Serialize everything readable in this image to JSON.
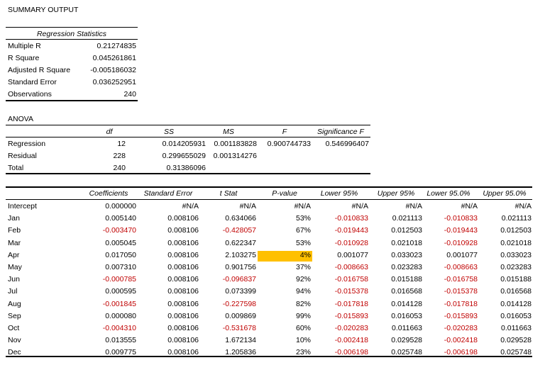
{
  "title": "SUMMARY OUTPUT",
  "regression_stats": {
    "header": "Regression Statistics",
    "rows": [
      {
        "label": "Multiple R",
        "value": "0.21274835"
      },
      {
        "label": "R Square",
        "value": "0.045261861"
      },
      {
        "label": "Adjusted R Square",
        "value": "-0.005186032"
      },
      {
        "label": "Standard Error",
        "value": "0.036252951"
      },
      {
        "label": "Observations",
        "value": "240"
      }
    ]
  },
  "anova": {
    "title": "ANOVA",
    "headers": [
      "df",
      "SS",
      "MS",
      "F",
      "Significance F"
    ],
    "rows": [
      {
        "label": "Regression",
        "df": "12",
        "ss": "0.014205931",
        "ms": "0.001183828",
        "f": "0.900744733",
        "sig": "0.546996407"
      },
      {
        "label": "Residual",
        "df": "228",
        "ss": "0.299655029",
        "ms": "0.001314276",
        "f": "",
        "sig": ""
      },
      {
        "label": "Total",
        "df": "240",
        "ss": "0.31386096",
        "ms": "",
        "f": "",
        "sig": ""
      }
    ]
  },
  "coefficients": {
    "headers": [
      "Coefficients",
      "Standard Error",
      "t Stat",
      "P-value",
      "Lower 95%",
      "Upper 95%",
      "Lower 95.0%",
      "Upper 95.0%"
    ],
    "highlight_color": "#ffc000",
    "negative_color": "#c00000",
    "rows": [
      {
        "label": "Intercept",
        "coef": "0.000000",
        "se": "#N/A",
        "t": "#N/A",
        "p": "#N/A",
        "l95": "#N/A",
        "u95": "#N/A",
        "l950": "#N/A",
        "u950": "#N/A"
      },
      {
        "label": "Jan",
        "coef": "0.005140",
        "se": "0.008106",
        "t": "0.634066",
        "p": "53%",
        "l95": "-0.010833",
        "u95": "0.021113",
        "l950": "-0.010833",
        "u950": "0.021113"
      },
      {
        "label": "Feb",
        "coef": "-0.003470",
        "se": "0.008106",
        "t": "-0.428057",
        "p": "67%",
        "l95": "-0.019443",
        "u95": "0.012503",
        "l950": "-0.019443",
        "u950": "0.012503"
      },
      {
        "label": "Mar",
        "coef": "0.005045",
        "se": "0.008106",
        "t": "0.622347",
        "p": "53%",
        "l95": "-0.010928",
        "u95": "0.021018",
        "l950": "-0.010928",
        "u950": "0.021018"
      },
      {
        "label": "Apr",
        "coef": "0.017050",
        "se": "0.008106",
        "t": "2.103275",
        "p": "4%",
        "l95": "0.001077",
        "u95": "0.033023",
        "l950": "0.001077",
        "u950": "0.033023",
        "highlight_p": true
      },
      {
        "label": "May",
        "coef": "0.007310",
        "se": "0.008106",
        "t": "0.901756",
        "p": "37%",
        "l95": "-0.008663",
        "u95": "0.023283",
        "l950": "-0.008663",
        "u950": "0.023283"
      },
      {
        "label": "Jun",
        "coef": "-0.000785",
        "se": "0.008106",
        "t": "-0.096837",
        "p": "92%",
        "l95": "-0.016758",
        "u95": "0.015188",
        "l950": "-0.016758",
        "u950": "0.015188"
      },
      {
        "label": "Jul",
        "coef": "0.000595",
        "se": "0.008106",
        "t": "0.073399",
        "p": "94%",
        "l95": "-0.015378",
        "u95": "0.016568",
        "l950": "-0.015378",
        "u950": "0.016568"
      },
      {
        "label": "Aug",
        "coef": "-0.001845",
        "se": "0.008106",
        "t": "-0.227598",
        "p": "82%",
        "l95": "-0.017818",
        "u95": "0.014128",
        "l950": "-0.017818",
        "u950": "0.014128"
      },
      {
        "label": "Sep",
        "coef": "0.000080",
        "se": "0.008106",
        "t": "0.009869",
        "p": "99%",
        "l95": "-0.015893",
        "u95": "0.016053",
        "l950": "-0.015893",
        "u950": "0.016053"
      },
      {
        "label": "Oct",
        "coef": "-0.004310",
        "se": "0.008106",
        "t": "-0.531678",
        "p": "60%",
        "l95": "-0.020283",
        "u95": "0.011663",
        "l950": "-0.020283",
        "u950": "0.011663"
      },
      {
        "label": "Nov",
        "coef": "0.013555",
        "se": "0.008106",
        "t": "1.672134",
        "p": "10%",
        "l95": "-0.002418",
        "u95": "0.029528",
        "l950": "-0.002418",
        "u950": "0.029528"
      },
      {
        "label": "Dec",
        "coef": "0.009775",
        "se": "0.008106",
        "t": "1.205836",
        "p": "23%",
        "l95": "-0.006198",
        "u95": "0.025748",
        "l950": "-0.006198",
        "u950": "0.025748"
      }
    ]
  }
}
